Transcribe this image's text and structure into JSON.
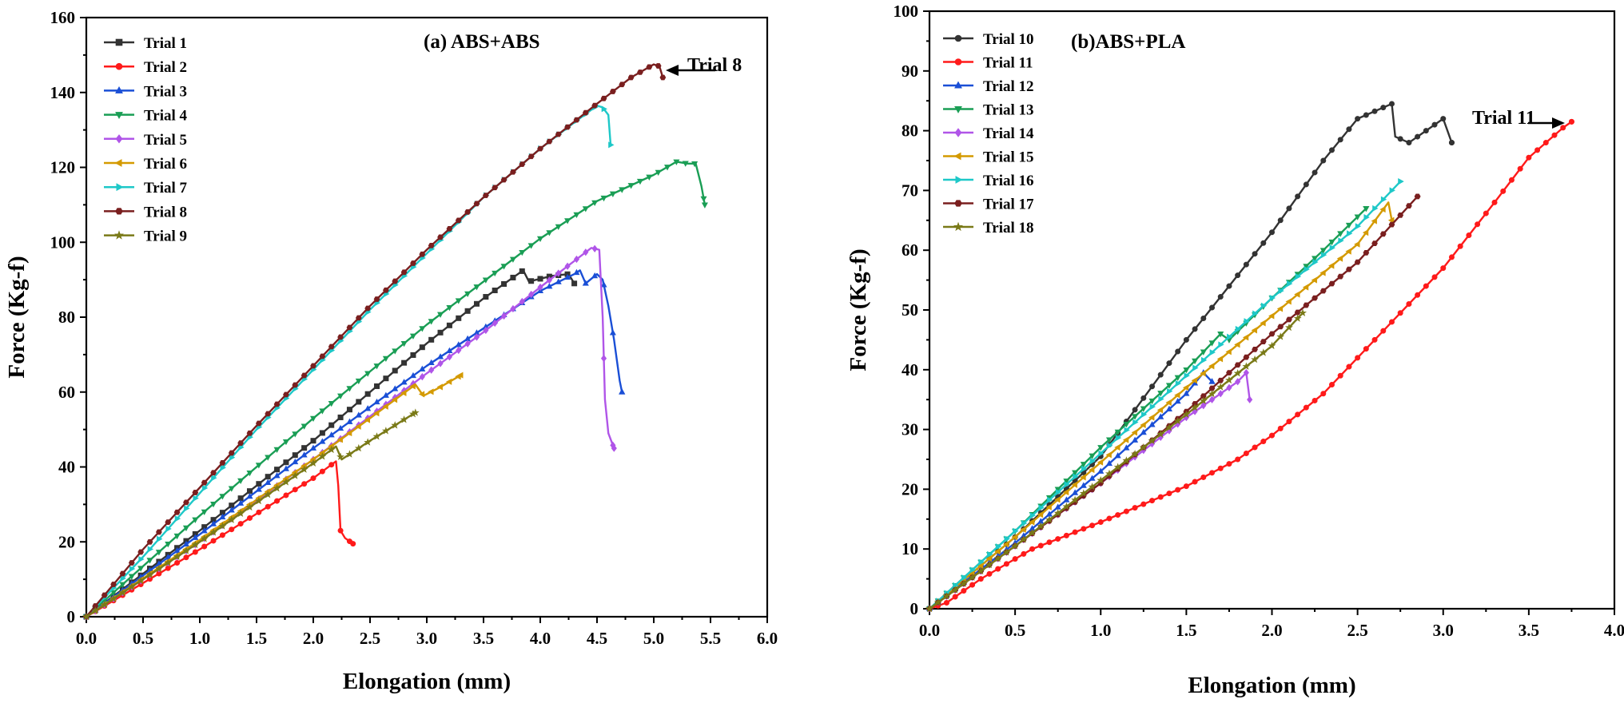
{
  "chart_data": [
    {
      "type": "line",
      "title": "(a) ABS+ABS",
      "xlabel": "Elongation (mm)",
      "ylabel": "Force (Kg-f)",
      "xlim": [
        0,
        6.0
      ],
      "ylim": [
        0,
        160
      ],
      "xticks": [
        "0.0",
        "0.5",
        "1.0",
        "1.5",
        "2.0",
        "2.5",
        "3.0",
        "3.5",
        "4.0",
        "4.5",
        "5.0",
        "5.5",
        "6.0"
      ],
      "yticks": [
        "0",
        "20",
        "40",
        "60",
        "80",
        "100",
        "120",
        "140",
        "160"
      ],
      "legend_position": "top-left",
      "annotation": {
        "text": "Trial 8",
        "x": 5.0,
        "y": 147
      },
      "series": [
        {
          "name": "Trial 1",
          "color": "#333333",
          "marker": "square",
          "points": [
            [
              0,
              0
            ],
            [
              1.0,
              23
            ],
            [
              2.0,
              47
            ],
            [
              3.0,
              73
            ],
            [
              3.5,
              85
            ],
            [
              3.85,
              92.5
            ],
            [
              3.9,
              89.5
            ],
            [
              4.1,
              91
            ],
            [
              4.25,
              91.5
            ],
            [
              4.3,
              89
            ]
          ]
        },
        {
          "name": "Trial 2",
          "color": "#ff1a1a",
          "marker": "circle",
          "points": [
            [
              0,
              0
            ],
            [
              0.5,
              9
            ],
            [
              1.0,
              18
            ],
            [
              1.5,
              27.5
            ],
            [
              2.0,
              37
            ],
            [
              2.2,
              41.5
            ],
            [
              2.22,
              35
            ],
            [
              2.24,
              23
            ],
            [
              2.28,
              21
            ],
            [
              2.35,
              19.5
            ]
          ]
        },
        {
          "name": "Trial 3",
          "color": "#1a4fd6",
          "marker": "triangle-up",
          "points": [
            [
              0,
              0
            ],
            [
              1.0,
              22
            ],
            [
              2.0,
              45
            ],
            [
              3.0,
              67
            ],
            [
              3.5,
              77
            ],
            [
              4.0,
              87
            ],
            [
              4.3,
              91.5
            ],
            [
              4.35,
              92.5
            ],
            [
              4.4,
              89
            ],
            [
              4.5,
              91.5
            ],
            [
              4.55,
              90
            ],
            [
              4.6,
              83
            ],
            [
              4.65,
              74
            ],
            [
              4.7,
              63
            ],
            [
              4.72,
              60
            ]
          ]
        },
        {
          "name": "Trial 4",
          "color": "#1a9e55",
          "marker": "triangle-down",
          "points": [
            [
              0,
              0
            ],
            [
              1.0,
              27
            ],
            [
              2.0,
              53
            ],
            [
              3.0,
              78
            ],
            [
              4.0,
              101
            ],
            [
              4.5,
              111
            ],
            [
              5.0,
              118
            ],
            [
              5.2,
              121.5
            ],
            [
              5.3,
              121
            ],
            [
              5.37,
              121
            ],
            [
              5.42,
              115
            ],
            [
              5.45,
              110
            ]
          ]
        },
        {
          "name": "Trial 5",
          "color": "#b055e8",
          "marker": "diamond",
          "points": [
            [
              0,
              0
            ],
            [
              1.0,
              20
            ],
            [
              2.0,
              42
            ],
            [
              3.0,
              65
            ],
            [
              3.5,
              76
            ],
            [
              4.0,
              88
            ],
            [
              4.3,
              95
            ],
            [
              4.45,
              98.5
            ],
            [
              4.52,
              98
            ],
            [
              4.55,
              80
            ],
            [
              4.57,
              58
            ],
            [
              4.6,
              49
            ],
            [
              4.65,
              45
            ]
          ]
        },
        {
          "name": "Trial 6",
          "color": "#d49a00",
          "marker": "triangle-left",
          "points": [
            [
              0,
              0
            ],
            [
              1.0,
              20.5
            ],
            [
              2.0,
              42
            ],
            [
              2.5,
              53
            ],
            [
              2.9,
              62
            ],
            [
              2.97,
              59
            ],
            [
              3.1,
              61
            ],
            [
              3.3,
              64.5
            ]
          ]
        },
        {
          "name": "Trial 7",
          "color": "#1ec8c8",
          "marker": "triangle-right",
          "points": [
            [
              0,
              0
            ],
            [
              0.5,
              16
            ],
            [
              1.0,
              33
            ],
            [
              1.5,
              50
            ],
            [
              2.0,
              66
            ],
            [
              2.5,
              82
            ],
            [
              3.0,
              97
            ],
            [
              3.5,
              112
            ],
            [
              4.0,
              125
            ],
            [
              4.3,
              132
            ],
            [
              4.5,
              136.5
            ],
            [
              4.55,
              136
            ],
            [
              4.6,
              134
            ],
            [
              4.62,
              126
            ]
          ]
        },
        {
          "name": "Trial 8",
          "color": "#7a1f1f",
          "marker": "hexagon",
          "points": [
            [
              0,
              0
            ],
            [
              0.5,
              18
            ],
            [
              1.0,
              34.5
            ],
            [
              1.5,
              51
            ],
            [
              2.0,
              67
            ],
            [
              2.5,
              83
            ],
            [
              3.0,
              98
            ],
            [
              3.5,
              112
            ],
            [
              4.0,
              125
            ],
            [
              4.5,
              137
            ],
            [
              4.8,
              144
            ],
            [
              5.0,
              147.5
            ],
            [
              5.05,
              147
            ],
            [
              5.08,
              144
            ]
          ]
        },
        {
          "name": "Trial 9",
          "color": "#7a7a18",
          "marker": "star",
          "points": [
            [
              0,
              0
            ],
            [
              1.0,
              20
            ],
            [
              2.0,
              41
            ],
            [
              2.2,
              45.5
            ],
            [
              2.25,
              42
            ],
            [
              2.5,
              47
            ],
            [
              2.9,
              54.5
            ]
          ]
        }
      ]
    },
    {
      "type": "line",
      "title": "(b)ABS+PLA",
      "xlabel": "Elongation (mm)",
      "ylabel": "Force (Kg-f)",
      "xlim": [
        0,
        4.0
      ],
      "ylim": [
        0,
        100
      ],
      "xticks": [
        "0.0",
        "0.5",
        "1.0",
        "1.5",
        "2.0",
        "2.5",
        "3.0",
        "3.5",
        "4.0"
      ],
      "yticks": [
        "0",
        "10",
        "20",
        "30",
        "40",
        "50",
        "60",
        "70",
        "80",
        "90",
        "100"
      ],
      "legend_position": "top-left",
      "annotation": {
        "text": "Trial 11",
        "x": 3.72,
        "y": 81
      },
      "series": [
        {
          "name": "Trial 10",
          "color": "#333333",
          "marker": "circle",
          "points": [
            [
              0,
              0
            ],
            [
              0.5,
              12
            ],
            [
              1.0,
              25.5
            ],
            [
              1.5,
              45
            ],
            [
              2.0,
              63
            ],
            [
              2.3,
              75
            ],
            [
              2.5,
              82
            ],
            [
              2.7,
              84.5
            ],
            [
              2.72,
              79
            ],
            [
              2.8,
              78
            ],
            [
              2.9,
              80
            ],
            [
              3.0,
              82
            ],
            [
              3.05,
              78
            ]
          ]
        },
        {
          "name": "Trial 11",
          "color": "#ff1a1a",
          "marker": "circle",
          "points": [
            [
              0,
              0
            ],
            [
              0.1,
              1
            ],
            [
              0.3,
              5
            ],
            [
              0.6,
              10
            ],
            [
              1.0,
              14.5
            ],
            [
              1.5,
              20.5
            ],
            [
              1.8,
              25
            ],
            [
              2.0,
              29
            ],
            [
              2.3,
              36
            ],
            [
              2.6,
              45
            ],
            [
              3.0,
              57
            ],
            [
              3.3,
              68
            ],
            [
              3.5,
              75.5
            ],
            [
              3.7,
              80.5
            ],
            [
              3.75,
              81.5
            ]
          ]
        },
        {
          "name": "Trial 12",
          "color": "#1a4fd6",
          "marker": "triangle-up",
          "points": [
            [
              0,
              0
            ],
            [
              0.5,
              11
            ],
            [
              1.0,
              23
            ],
            [
              1.5,
              36
            ],
            [
              1.6,
              39.5
            ],
            [
              1.65,
              38
            ]
          ]
        },
        {
          "name": "Trial 13",
          "color": "#1a9e55",
          "marker": "triangle-down",
          "points": [
            [
              0,
              0
            ],
            [
              0.5,
              13
            ],
            [
              1.0,
              27
            ],
            [
              1.5,
              40
            ],
            [
              1.7,
              46
            ],
            [
              1.75,
              45
            ],
            [
              2.0,
              52
            ],
            [
              2.3,
              60
            ],
            [
              2.55,
              67
            ]
          ]
        },
        {
          "name": "Trial 14",
          "color": "#b055e8",
          "marker": "diamond",
          "points": [
            [
              0,
              0
            ],
            [
              0.5,
              10.5
            ],
            [
              1.0,
              21
            ],
            [
              1.5,
              32
            ],
            [
              1.8,
              38
            ],
            [
              1.85,
              39.5
            ],
            [
              1.87,
              35
            ]
          ]
        },
        {
          "name": "Trial 15",
          "color": "#d49a00",
          "marker": "triangle-left",
          "points": [
            [
              0,
              0
            ],
            [
              0.5,
              12
            ],
            [
              1.0,
              24.5
            ],
            [
              1.5,
              37
            ],
            [
              2.0,
              49
            ],
            [
              2.5,
              61
            ],
            [
              2.68,
              68
            ],
            [
              2.7,
              65
            ]
          ]
        },
        {
          "name": "Trial 16",
          "color": "#1ec8c8",
          "marker": "triangle-right",
          "points": [
            [
              0,
              0
            ],
            [
              0.5,
              13
            ],
            [
              1.0,
              26
            ],
            [
              1.5,
              39
            ],
            [
              2.0,
              52
            ],
            [
              2.5,
              64
            ],
            [
              2.75,
              71.5
            ]
          ]
        },
        {
          "name": "Trial 17",
          "color": "#7a1f1f",
          "marker": "hexagon",
          "points": [
            [
              0,
              0
            ],
            [
              0.5,
              10.5
            ],
            [
              1.0,
              21
            ],
            [
              1.5,
              33
            ],
            [
              2.0,
              46
            ],
            [
              2.5,
              58
            ],
            [
              2.85,
              69
            ]
          ]
        },
        {
          "name": "Trial 18",
          "color": "#7a7a18",
          "marker": "star",
          "points": [
            [
              0,
              0
            ],
            [
              0.5,
              10.5
            ],
            [
              1.0,
              21.5
            ],
            [
              1.5,
              32.5
            ],
            [
              2.0,
              44
            ],
            [
              2.18,
              49.5
            ]
          ]
        }
      ]
    }
  ]
}
